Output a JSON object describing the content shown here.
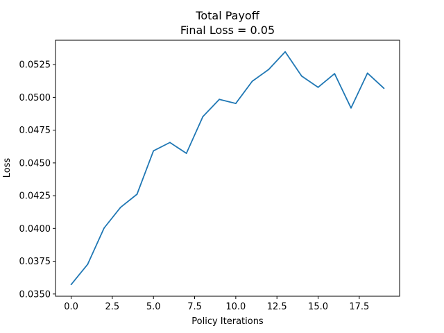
{
  "chart_data": {
    "type": "line",
    "title": "Total Payoff",
    "subtitle": "Final Loss = 0.05",
    "xlabel": "Policy Iterations",
    "ylabel": "Loss",
    "xlim": [
      -0.95,
      19.95
    ],
    "ylim": [
      0.03483,
      0.05436
    ],
    "xticks": [
      0.0,
      2.5,
      5.0,
      7.5,
      10.0,
      12.5,
      15.0,
      17.5
    ],
    "xtick_labels": [
      "0.0",
      "2.5",
      "5.0",
      "7.5",
      "10.0",
      "12.5",
      "15.0",
      "17.5"
    ],
    "yticks": [
      0.035,
      0.0375,
      0.04,
      0.0425,
      0.045,
      0.0475,
      0.05,
      0.0525
    ],
    "ytick_labels": [
      "0.0350",
      "0.0375",
      "0.0400",
      "0.0425",
      "0.0450",
      "0.0475",
      "0.0500",
      "0.0525"
    ],
    "grid": false,
    "series": [
      {
        "color": "#1f77b4",
        "x": [
          0,
          1,
          2,
          3,
          4,
          5,
          6,
          7,
          8,
          9,
          10,
          11,
          12,
          13,
          14,
          15,
          16,
          17,
          18,
          19
        ],
        "y": [
          0.03572,
          0.03726,
          0.04003,
          0.04161,
          0.04261,
          0.04592,
          0.04656,
          0.04573,
          0.04853,
          0.04985,
          0.04954,
          0.05123,
          0.05213,
          0.05348,
          0.05163,
          0.05077,
          0.05181,
          0.04919,
          0.05185,
          0.05069
        ]
      }
    ]
  }
}
